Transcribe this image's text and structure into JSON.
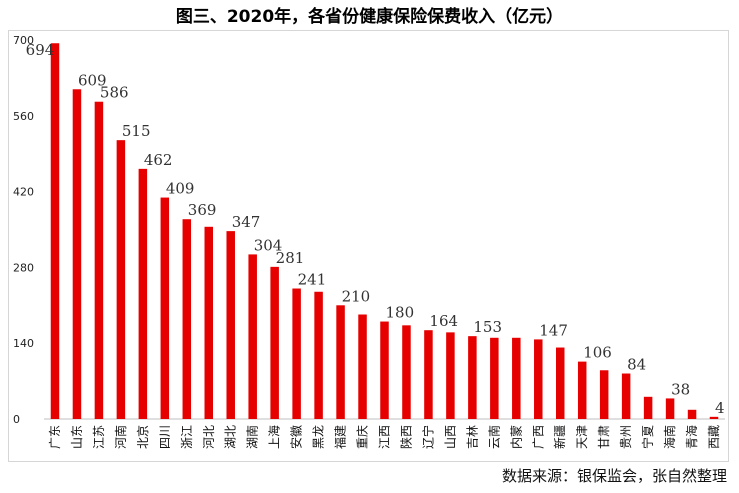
{
  "chart_data": {
    "type": "bar",
    "title": "图三、2020年，各省份健康保险保费收入（亿元）",
    "source": "数据来源：银保监会，张自然整理",
    "categories": [
      "广东",
      "山东",
      "江苏",
      "河南",
      "北京",
      "四川",
      "浙江",
      "河北",
      "湖北",
      "湖南",
      "上海",
      "安徽",
      "黑龙",
      "福建",
      "重庆",
      "江西",
      "陕西",
      "辽宁",
      "山西",
      "吉林",
      "云南",
      "内蒙",
      "广西",
      "新疆",
      "天津",
      "甘肃",
      "贵州",
      "宁夏",
      "海南",
      "青海",
      "西藏"
    ],
    "values": [
      694,
      609,
      586,
      515,
      462,
      409,
      369,
      355,
      347,
      304,
      281,
      241,
      235,
      210,
      193,
      180,
      173,
      164,
      160,
      153,
      150,
      150,
      147,
      132,
      106,
      90,
      84,
      41,
      38,
      17,
      4
    ],
    "labels": [
      "694",
      "609",
      "586",
      "515",
      "462",
      "409",
      "369",
      "",
      "347",
      "304",
      "281",
      "241",
      "",
      "210",
      "",
      "180",
      "",
      "164",
      "",
      "153",
      "",
      "",
      "147",
      "",
      "106",
      "",
      "84",
      "",
      "38",
      "",
      "4"
    ],
    "ylim": [
      0,
      700
    ],
    "yticks": [
      0,
      140,
      280,
      420,
      560,
      700
    ],
    "color": "#e60000",
    "grid": false,
    "legend": "none"
  }
}
